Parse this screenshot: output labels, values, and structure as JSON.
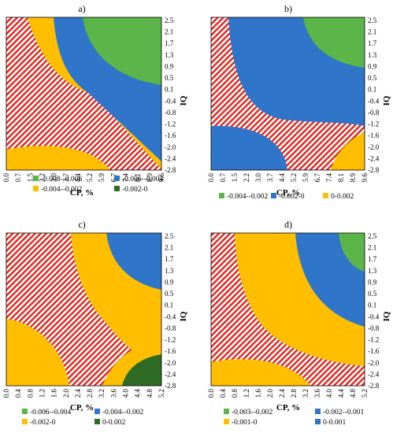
{
  "colors": {
    "hatch_red": "#e0241b",
    "hatch_bg": "#ffffff",
    "yellow": "#ffbf00",
    "blue": "#2f75c9",
    "green_light": "#5bb548",
    "green_dark": "#2e6b25",
    "axis": "#000000"
  },
  "chart_data": [
    {
      "type": "heatmap",
      "panel_label": "a)",
      "xlabel": "CP, %",
      "ylabel": "IQ",
      "x_ticks": [
        "0.0",
        "0.7",
        "1.5",
        "2.2",
        "3.0",
        "3.7",
        "4.4",
        "5.2",
        "5.9",
        "6.7",
        "7.4",
        "8.1",
        "8.9",
        "9.6"
      ],
      "y_ticks": [
        "2.5",
        "2.1",
        "1.7",
        "1.3",
        "0.9",
        "0.5",
        "0.1",
        "-0.4",
        "-0.8",
        "-1.2",
        "-1.6",
        "-2.0",
        "-2.4",
        "-2.8"
      ],
      "xlim": [
        0.0,
        9.6
      ],
      "ylim": [
        -2.8,
        2.5
      ],
      "legend": [
        {
          "label": "-0.008--0.006",
          "color": "green_light"
        },
        {
          "label": "-0.006--0.004",
          "color": "blue"
        },
        {
          "label": "-0.004--0.002",
          "color": "yellow"
        },
        {
          "label": "-0.002-0",
          "color": "green_dark"
        }
      ],
      "legend_columns": 2,
      "regions": [
        {
          "level": "-0.004--0.002",
          "color": "yellow",
          "corner": "top-left-arc"
        },
        {
          "level": "-0.006--0.004",
          "color": "blue",
          "corner": "top-right-large"
        },
        {
          "level": "-0.008--0.006",
          "color": "green_light",
          "corner": "top-right-small"
        },
        {
          "level": "-0.004--0.002",
          "color": "yellow",
          "corner": "bottom-left-arc"
        }
      ]
    },
    {
      "type": "heatmap",
      "panel_label": "b)",
      "xlabel": "CP, %",
      "ylabel": "IQ",
      "x_ticks": [
        "0.0",
        "0.7",
        "1.5",
        "2.2",
        "3.0",
        "3.7",
        "4.4",
        "5.2",
        "5.9",
        "6.7",
        "7.4",
        "8.1",
        "8.9",
        "9.6"
      ],
      "y_ticks": [
        "2.5",
        "2.1",
        "1.7",
        "1.3",
        "0.9",
        "0.5",
        "0.1",
        "-0.4",
        "-0.8",
        "-1.2",
        "-1.6",
        "-2.0",
        "-2.4",
        "-2.8"
      ],
      "xlim": [
        0.0,
        9.6
      ],
      "ylim": [
        -2.8,
        2.5
      ],
      "legend": [
        {
          "label": "-0.004--0.002",
          "color": "green_light"
        },
        {
          "label": "-0.002-0",
          "color": "blue"
        },
        {
          "label": "0-0.002",
          "color": "yellow"
        }
      ],
      "legend_columns": 3,
      "regions": [
        {
          "level": "-0.002-0",
          "color": "blue",
          "corner": "top-right-large"
        },
        {
          "level": "-0.004--0.002",
          "color": "green_light",
          "corner": "top-right-small"
        },
        {
          "level": "-0.002-0",
          "color": "blue",
          "corner": "bottom-left-arc"
        },
        {
          "level": "0-0.002",
          "color": "yellow",
          "corner": "bottom-right-small"
        }
      ]
    },
    {
      "type": "heatmap",
      "panel_label": "c)",
      "xlabel": "CP, %",
      "ylabel": "IQ",
      "x_ticks": [
        "0.0",
        "0.4",
        "0.8",
        "1.2",
        "1.6",
        "2.0",
        "2.4",
        "2.8",
        "3.2",
        "3.6",
        "4.0",
        "4.4",
        "4.8",
        "5.2"
      ],
      "y_ticks": [
        "2.5",
        "2.1",
        "1.7",
        "1.3",
        "0.9",
        "0.5",
        "0.1",
        "-0.4",
        "-0.8",
        "-1.2",
        "-1.6",
        "-2.0",
        "-2.4",
        "-2.8"
      ],
      "xlim": [
        0.0,
        5.2
      ],
      "ylim": [
        -2.8,
        2.5
      ],
      "legend": [
        {
          "label": "-0.006--0.004",
          "color": "green_light"
        },
        {
          "label": "-0.004--0.002",
          "color": "blue"
        },
        {
          "label": "-0.002-0",
          "color": "yellow"
        },
        {
          "label": "0-0.002",
          "color": "green_dark"
        }
      ],
      "legend_columns": 2,
      "regions": [
        {
          "level": "-0.002-0",
          "color": "yellow",
          "corner": "top-right-large"
        },
        {
          "level": "-0.004--0.002",
          "color": "blue",
          "corner": "top-right-small"
        },
        {
          "level": "-0.002-0",
          "color": "yellow",
          "corner": "bottom-left-arc"
        },
        {
          "level": "-0.002-0",
          "color": "yellow",
          "corner": "bottom-right-large"
        },
        {
          "level": "0-0.002",
          "color": "green_dark",
          "corner": "bottom-right-small"
        }
      ]
    },
    {
      "type": "heatmap",
      "panel_label": "d)",
      "xlabel": "CP, %",
      "ylabel": "IQ",
      "x_ticks": [
        "0.0",
        "0.4",
        "0.8",
        "1.2",
        "1.6",
        "2.0",
        "2.4",
        "2.8",
        "3.2",
        "3.6",
        "4.0",
        "4.4",
        "4.8",
        "5.2"
      ],
      "y_ticks": [
        "2.5",
        "2.1",
        "1.7",
        "1.3",
        "0.9",
        "0.5",
        "0.1",
        "-0.4",
        "-0.8",
        "-1.2",
        "-1.6",
        "-2.0",
        "-2.4",
        "-2.8"
      ],
      "xlim": [
        0.0,
        5.2
      ],
      "ylim": [
        -2.8,
        2.5
      ],
      "legend": [
        {
          "label": "-0.003--0.002",
          "color": "green_light"
        },
        {
          "label": "-0.002--0.001",
          "color": "blue"
        },
        {
          "label": "-0.001-0",
          "color": "yellow"
        },
        {
          "label": "0-0.001",
          "color": "blue"
        }
      ],
      "legend_columns": 2,
      "regions": [
        {
          "level": "-0.001-0",
          "color": "yellow",
          "corner": "top-right-large"
        },
        {
          "level": "-0.002--0.001",
          "color": "blue",
          "corner": "top-right-mid"
        },
        {
          "level": "-0.003--0.002",
          "color": "green_light",
          "corner": "top-right-small"
        },
        {
          "level": "-0.001-0",
          "color": "yellow",
          "corner": "bottom-left-arc"
        }
      ]
    }
  ]
}
